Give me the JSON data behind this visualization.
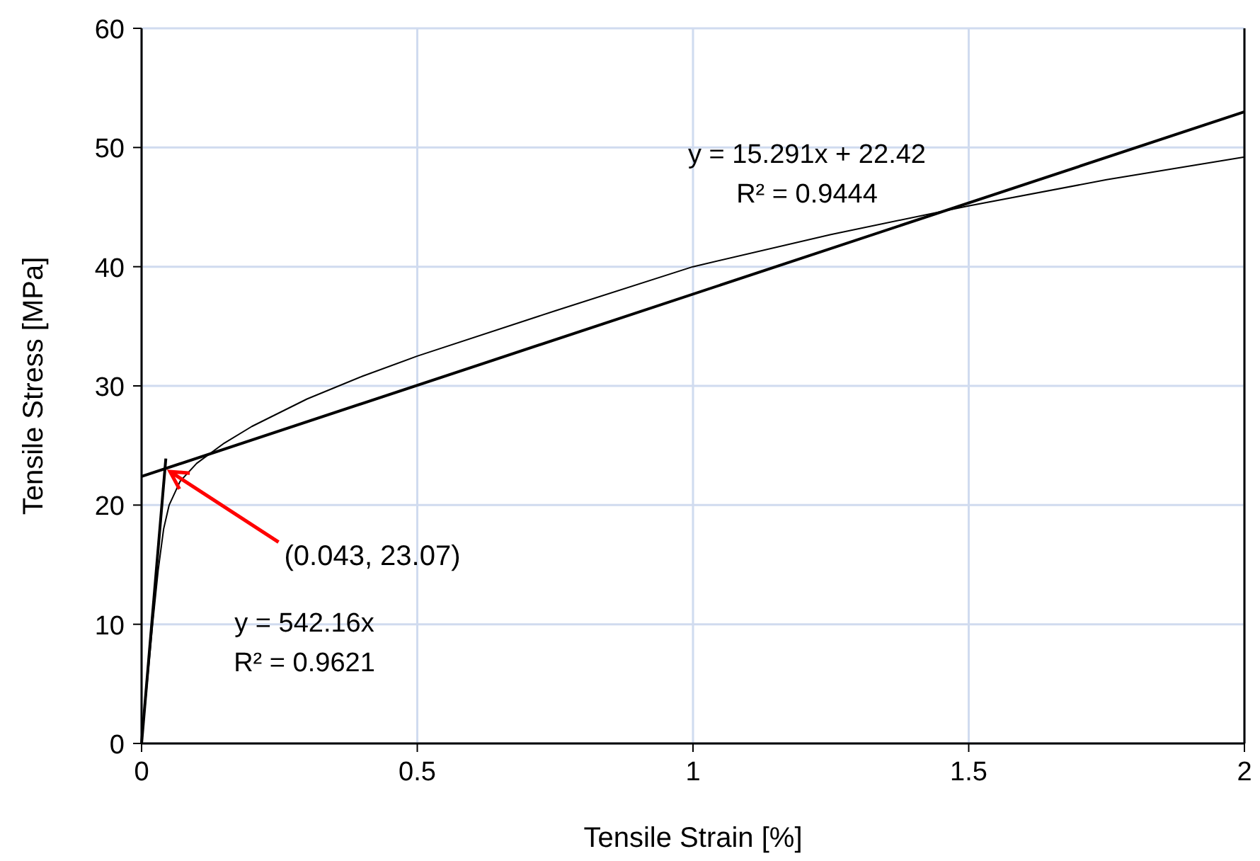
{
  "chart_data": {
    "type": "line",
    "xlabel": "Tensile Strain [%]",
    "ylabel": "Tensile Stress [MPa]",
    "xlim": [
      0,
      2
    ],
    "xticks": [
      0,
      0.5,
      1,
      1.5,
      2
    ],
    "ylim": [
      0,
      60
    ],
    "yticks": [
      0,
      10,
      20,
      30,
      40,
      50,
      60
    ],
    "grid": true,
    "marker": "none",
    "series": [
      {
        "color": "#000000",
        "x": [
          0,
          0.01,
          0.02,
          0.03,
          0.04,
          0.05,
          0.07,
          0.1,
          0.15,
          0.2,
          0.3,
          0.4,
          0.5,
          0.75,
          1,
          1.25,
          1.5,
          1.75,
          2
        ],
        "values": [
          0,
          5,
          10,
          14.5,
          18,
          20,
          22,
          23.5,
          25.2,
          26.6,
          28.9,
          30.8,
          32.5,
          36.3,
          40,
          42.7,
          45.1,
          47.3,
          49.2
        ]
      },
      {
        "color": "#000000",
        "x": [
          0,
          0.044
        ],
        "values": [
          0,
          23.9
        ]
      },
      {
        "color": "#000000",
        "x": [
          0,
          2
        ],
        "values": [
          22.4,
          53
        ]
      }
    ],
    "annotations": [
      "y = 15.291x + 22.42\nR² = 0.9444",
      "y = 542.16x\nR² = 0.9621",
      {
        "text": "(0.043, 23.07)",
        "x": 0.043,
        "y": 23.07
      }
    ]
  }
}
